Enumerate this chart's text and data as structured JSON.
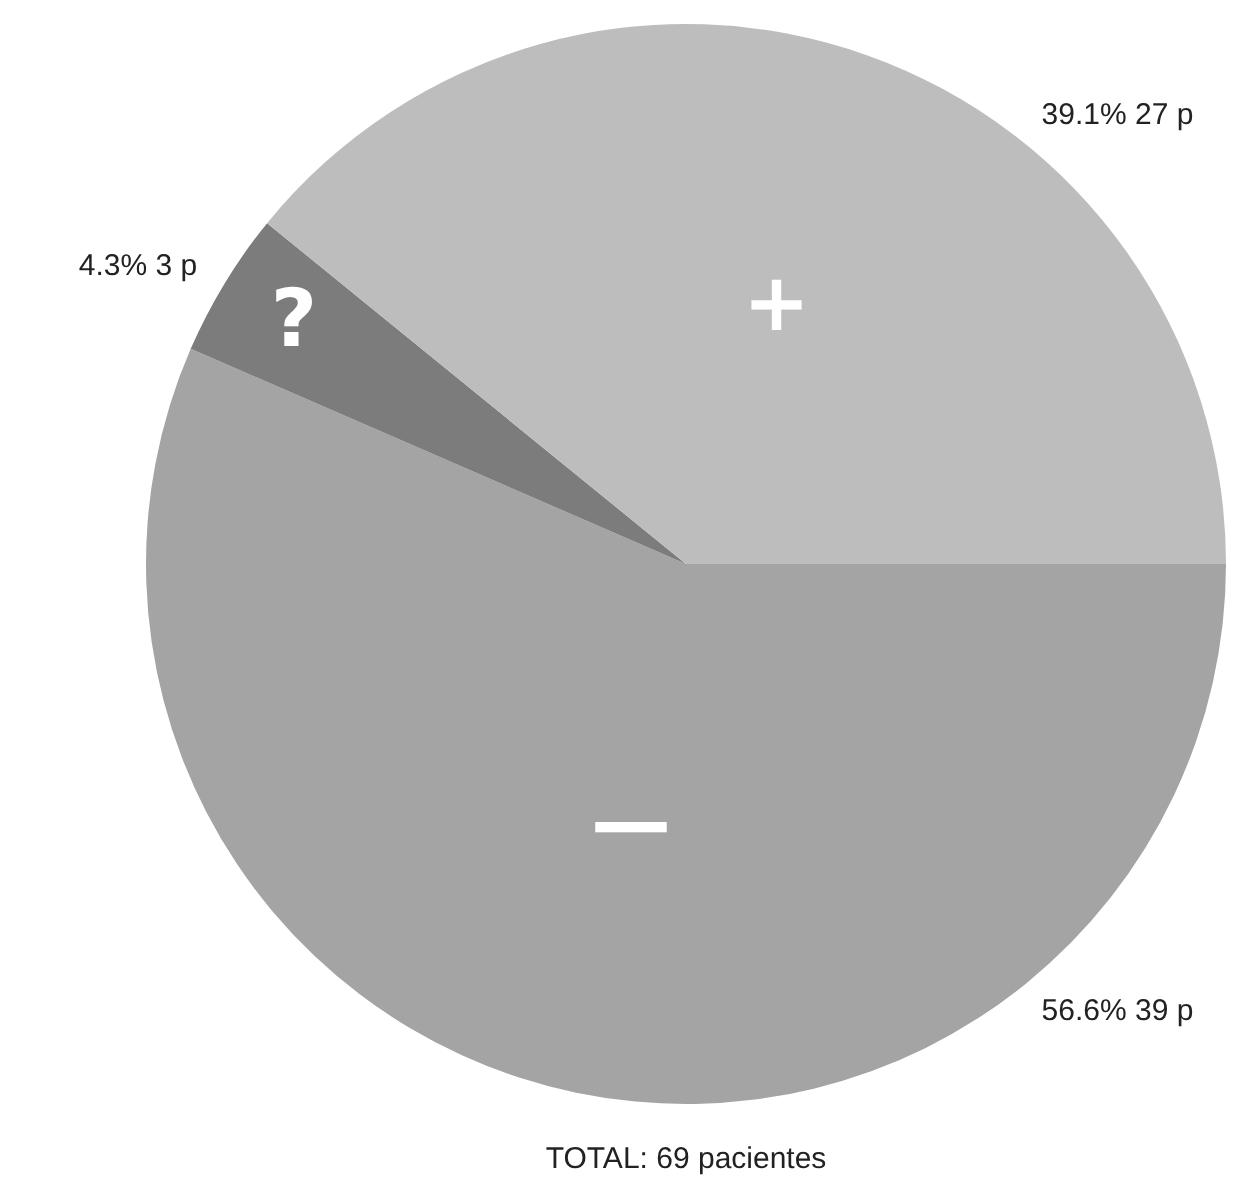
{
  "chart_data": {
    "type": "pie",
    "categories": [
      "—",
      "?",
      "+"
    ],
    "values": [
      39,
      3,
      27
    ],
    "colors": [
      "#a4a4a4",
      "#7c7c7c",
      "#bdbdbd"
    ],
    "value_labels": [
      "56.6% 39 p",
      "4.3% 3 p",
      "39.1% 27 p"
    ],
    "annotations": [
      "TOTAL: 69 pacientes"
    ],
    "legend": false
  }
}
